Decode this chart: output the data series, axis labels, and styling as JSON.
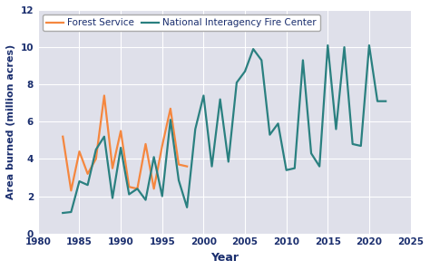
{
  "forest_service_years": [
    1983,
    1984,
    1985,
    1986,
    1987,
    1988,
    1989,
    1990,
    1991,
    1992,
    1993,
    1994,
    1995,
    1996,
    1997,
    1998
  ],
  "forest_service_values": [
    5.2,
    2.3,
    4.4,
    3.2,
    4.0,
    7.4,
    3.5,
    5.5,
    2.5,
    2.4,
    4.8,
    2.4,
    4.7,
    6.7,
    3.7,
    3.6
  ],
  "nifc_years": [
    1983,
    1984,
    1985,
    1986,
    1987,
    1988,
    1989,
    1990,
    1991,
    1992,
    1993,
    1994,
    1995,
    1996,
    1997,
    1998,
    1999,
    2000,
    2001,
    2002,
    2003,
    2004,
    2005,
    2006,
    2007,
    2008,
    2009,
    2010,
    2011,
    2012,
    2013,
    2014,
    2015,
    2016,
    2017,
    2018,
    2019,
    2020,
    2021,
    2022
  ],
  "nifc_values": [
    1.1,
    1.15,
    2.8,
    2.6,
    4.5,
    5.2,
    1.9,
    4.6,
    2.1,
    2.4,
    1.8,
    4.1,
    2.0,
    6.1,
    2.85,
    1.4,
    5.6,
    7.4,
    3.6,
    7.2,
    3.85,
    8.1,
    8.7,
    9.9,
    9.3,
    5.3,
    5.9,
    3.4,
    3.5,
    9.3,
    4.3,
    3.6,
    10.1,
    5.6,
    10.0,
    4.8,
    4.7,
    10.1,
    7.1,
    7.1
  ],
  "forest_service_color": "#f5873f",
  "nifc_color": "#2a8080",
  "fig_bg_color": "#ffffff",
  "plot_bg_color": "#dfe0ea",
  "grid_color": "#ffffff",
  "tick_label_color": "#1a2e6e",
  "axis_label_color": "#1a2e6e",
  "xlabel": "Year",
  "ylabel": "Area burned (million acres)",
  "xlim": [
    1980,
    2025
  ],
  "ylim": [
    0,
    12
  ],
  "yticks": [
    0,
    2,
    4,
    6,
    8,
    10,
    12
  ],
  "xticks": [
    1980,
    1985,
    1990,
    1995,
    2000,
    2005,
    2010,
    2015,
    2020,
    2025
  ],
  "legend_fs_label": "Forest Service",
  "legend_nifc_label": "National Interagency Fire Center",
  "linewidth": 1.6
}
